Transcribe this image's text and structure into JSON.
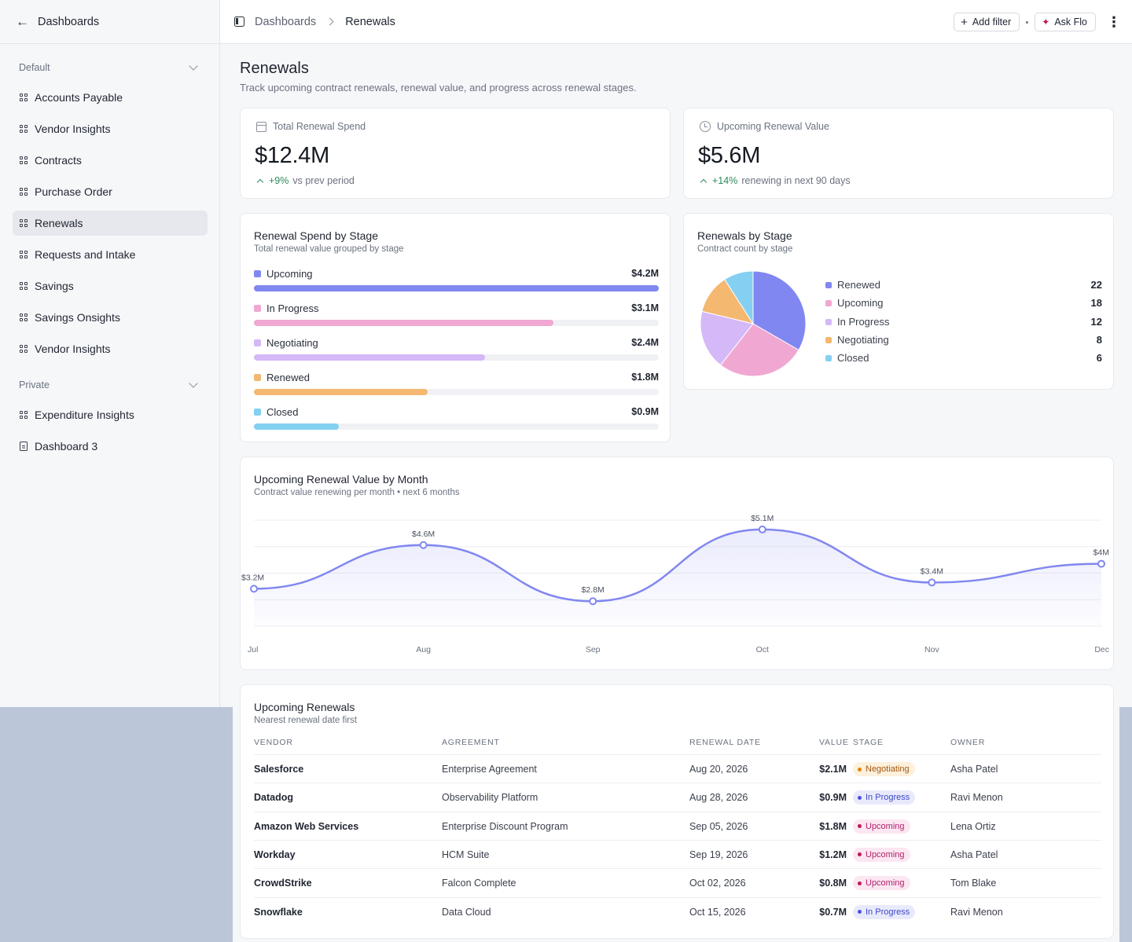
{
  "sidebar": {
    "title": "Dashboards",
    "sections": [
      {
        "label": "Default",
        "items": [
          {
            "label": "Accounts Payable",
            "icon": "dashboard-grid-icon"
          },
          {
            "label": "Vendor Insights",
            "icon": "dashboard-grid-icon"
          },
          {
            "label": "Contracts",
            "icon": "dashboard-grid-icon"
          },
          {
            "label": "Purchase Order",
            "icon": "dashboard-grid-icon"
          },
          {
            "label": "Renewals",
            "icon": "dashboard-grid-icon",
            "active": true
          },
          {
            "label": "Requests and Intake",
            "icon": "dashboard-grid-icon"
          },
          {
            "label": "Savings",
            "icon": "dashboard-grid-icon"
          },
          {
            "label": "Savings Onsights",
            "icon": "dashboard-grid-icon"
          },
          {
            "label": "Vendor Insights",
            "icon": "dashboard-grid-icon"
          }
        ]
      },
      {
        "label": "Private",
        "items": [
          {
            "label": "Expenditure Insights",
            "icon": "dashboard-grid-icon"
          },
          {
            "label": "Dashboard 3",
            "icon": "document-icon"
          }
        ]
      }
    ]
  },
  "topbar": {
    "breadcrumb": [
      "Dashboards",
      "Renewals"
    ],
    "add_filter": "Add filter",
    "ask_flo": "Ask Flo"
  },
  "page": {
    "title": "Renewals",
    "subtitle": "Track upcoming contract renewals, renewal value, and progress across renewal stages."
  },
  "kpis": [
    {
      "label": "Total Renewal Spend",
      "value": "$12.4M",
      "delta": "+9%",
      "delta_text": "vs prev period",
      "icon": "calendar-icon"
    },
    {
      "label": "Upcoming Renewal Value",
      "value": "$5.6M",
      "delta": "+14%",
      "delta_text": "renewing in next 90 days",
      "icon": "clock-icon"
    }
  ],
  "chart_data": [
    {
      "type": "bar",
      "title": "Renewal Spend by Stage",
      "subtitle": "Total renewal value grouped by stage",
      "categories": [
        "Upcoming",
        "In Progress",
        "Negotiating",
        "Renewed",
        "Closed"
      ],
      "values": [
        4.2,
        3.1,
        2.4,
        1.8,
        0.9
      ],
      "value_labels": [
        "$4.2M",
        "$3.1M",
        "$2.4M",
        "$1.8M",
        "$0.9M"
      ],
      "fill_fractions": [
        1.0,
        0.74,
        0.57,
        0.43,
        0.21
      ],
      "colors": [
        "#8187f0",
        "#f0a8d2",
        "#d5b8f7",
        "#f4b871",
        "#84d0f2"
      ]
    },
    {
      "type": "pie",
      "title": "Renewals by Stage",
      "subtitle": "Contract count by stage",
      "categories": [
        "Renewed",
        "Upcoming",
        "In Progress",
        "Negotiating",
        "Closed"
      ],
      "values": [
        22,
        18,
        12,
        8,
        6
      ],
      "colors": [
        "#8187f0",
        "#f0a8d2",
        "#d5b8f7",
        "#f4b871",
        "#84d0f2"
      ]
    },
    {
      "type": "area",
      "title": "Upcoming Renewal Value by Month",
      "subtitle": "Contract value renewing per month • next 6 months",
      "categories": [
        "Jul",
        "Aug",
        "Sep",
        "Oct",
        "Nov",
        "Dec"
      ],
      "values": [
        3.2,
        4.6,
        2.8,
        5.1,
        3.4,
        4.0
      ],
      "value_labels": [
        "$3.2M",
        "$4.6M",
        "$2.8M",
        "$5.1M",
        "$3.4M",
        "$4M"
      ],
      "color": "#8187f0"
    }
  ],
  "table": {
    "title": "Upcoming Renewals",
    "subtitle": "Nearest renewal date first",
    "columns": [
      "VENDOR",
      "AGREEMENT",
      "RENEWAL DATE",
      "VALUE",
      "STAGE",
      "OWNER"
    ],
    "rows": [
      {
        "vendor": "Salesforce",
        "agreement": "Enterprise Agreement",
        "date": "Aug 20, 2026",
        "value": "$2.1M",
        "stage": "Negotiating",
        "owner": "Asha Patel"
      },
      {
        "vendor": "Datadog",
        "agreement": "Observability Platform",
        "date": "Aug 28, 2026",
        "value": "$0.9M",
        "stage": "In Progress",
        "owner": "Ravi Menon"
      },
      {
        "vendor": "Amazon Web Services",
        "agreement": "Enterprise Discount Program",
        "date": "Sep 05, 2026",
        "value": "$1.8M",
        "stage": "Upcoming",
        "owner": "Lena Ortiz"
      },
      {
        "vendor": "Workday",
        "agreement": "HCM Suite",
        "date": "Sep 19, 2026",
        "value": "$1.2M",
        "stage": "Upcoming",
        "owner": "Asha Patel"
      },
      {
        "vendor": "CrowdStrike",
        "agreement": "Falcon Complete",
        "date": "Oct 02, 2026",
        "value": "$0.8M",
        "stage": "Upcoming",
        "owner": "Tom Blake"
      },
      {
        "vendor": "Snowflake",
        "agreement": "Data Cloud",
        "date": "Oct 15, 2026",
        "value": "$0.7M",
        "stage": "In Progress",
        "owner": "Ravi Menon"
      }
    ],
    "stage_styles": {
      "Negotiating": {
        "bg": "#fdf0dc",
        "fg": "#a35a0f",
        "dot": "#e0860f"
      },
      "In Progress": {
        "bg": "#e8eafc",
        "fg": "#3f47c9",
        "dot": "#4a52e0"
      },
      "Upcoming": {
        "bg": "#fbe6f1",
        "fg": "#b3216c",
        "dot": "#c2185b"
      }
    }
  }
}
